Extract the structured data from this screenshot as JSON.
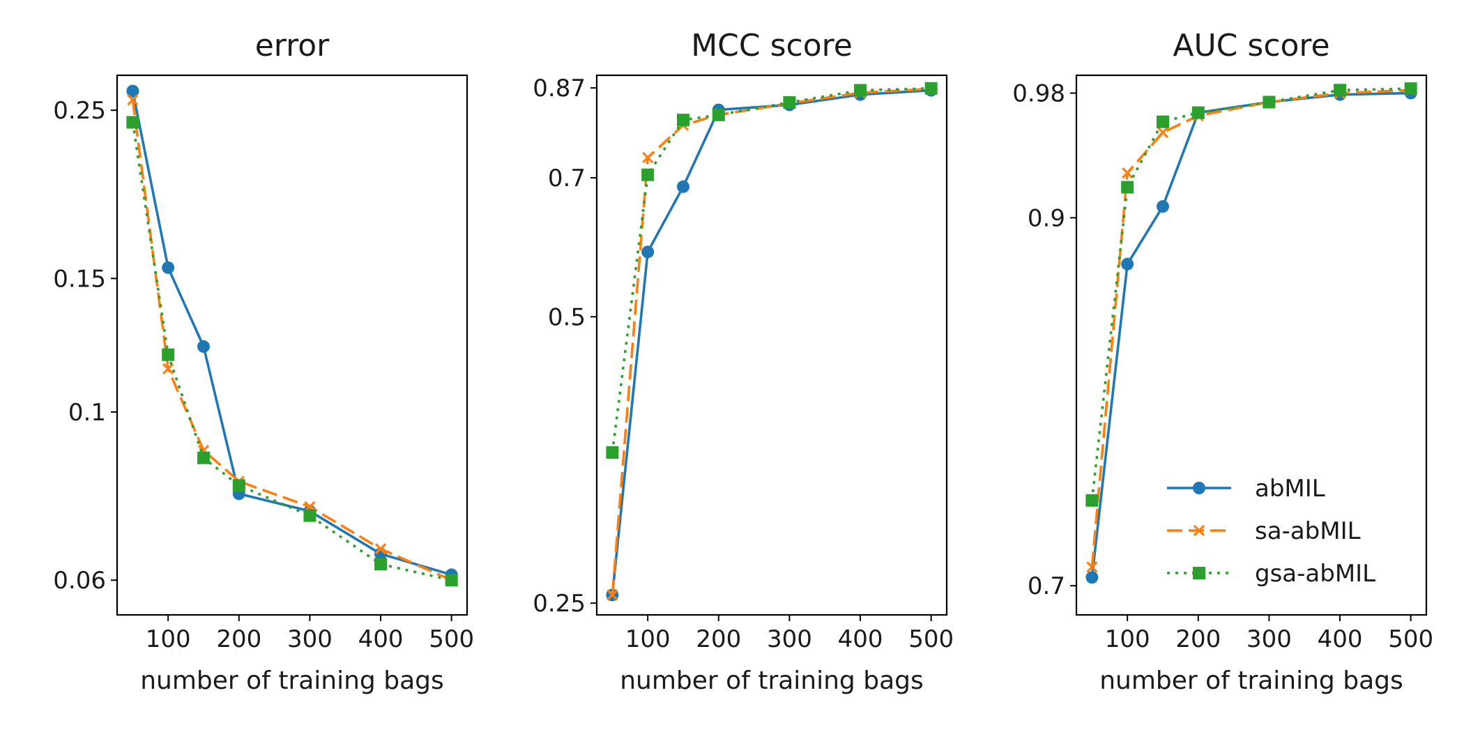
{
  "chart_data": [
    {
      "type": "line",
      "title": "error",
      "xlabel": "number of training bags",
      "ylabel": "",
      "xlim": [
        28,
        522
      ],
      "ylim": [
        0.054,
        0.278
      ],
      "xticks": [
        100,
        200,
        300,
        400,
        500
      ],
      "xtick_labels": [
        "100",
        "200",
        "300",
        "400",
        "500"
      ],
      "yticks": [
        0.06,
        0.1,
        0.15,
        0.25
      ],
      "ytick_labels": [
        "0.06",
        "0.1",
        "0.15",
        "0.25"
      ],
      "y_scale": "log",
      "grid": false,
      "x": [
        50,
        100,
        150,
        200,
        300,
        400,
        500
      ],
      "series": [
        {
          "name": "abMIL",
          "color": "#1f77b4",
          "dash": "solid",
          "marker": "circle",
          "values": [
            0.265,
            0.155,
            0.122,
            0.078,
            0.074,
            0.065,
            0.061
          ]
        },
        {
          "name": "sa-abMIL",
          "color": "#ff7f0e",
          "dash": "dashed",
          "marker": "x",
          "values": [
            0.258,
            0.114,
            0.089,
            0.081,
            0.075,
            0.066,
            0.06
          ]
        },
        {
          "name": "gsa-abMIL",
          "color": "#2ca02c",
          "dash": "dotted",
          "marker": "square",
          "values": [
            0.241,
            0.119,
            0.087,
            0.08,
            0.073,
            0.063,
            0.06
          ]
        }
      ]
    },
    {
      "type": "line",
      "title": "MCC score",
      "xlabel": "number of training bags",
      "ylabel": "",
      "xlim": [
        28,
        522
      ],
      "ylim": [
        0.243,
        0.897
      ],
      "xticks": [
        100,
        200,
        300,
        400,
        500
      ],
      "xtick_labels": [
        "100",
        "200",
        "300",
        "400",
        "500"
      ],
      "yticks": [
        0.25,
        0.5,
        0.7,
        0.87
      ],
      "ytick_labels": [
        "0.25",
        "0.5",
        "0.7",
        "0.87"
      ],
      "y_scale": "log",
      "grid": false,
      "x": [
        50,
        100,
        150,
        200,
        300,
        400,
        500
      ],
      "series": [
        {
          "name": "abMIL",
          "color": "#1f77b4",
          "dash": "solid",
          "marker": "circle",
          "values": [
            0.255,
            0.585,
            0.685,
            0.825,
            0.835,
            0.856,
            0.865
          ]
        },
        {
          "name": "sa-abMIL",
          "color": "#ff7f0e",
          "dash": "dashed",
          "marker": "x",
          "values": [
            0.255,
            0.735,
            0.795,
            0.815,
            0.838,
            0.86,
            0.868
          ]
        },
        {
          "name": "gsa-abMIL",
          "color": "#2ca02c",
          "dash": "dotted",
          "marker": "square",
          "values": [
            0.36,
            0.705,
            0.805,
            0.815,
            0.84,
            0.865,
            0.869
          ]
        }
      ]
    },
    {
      "type": "line",
      "title": "AUC score",
      "xlabel": "number of training bags",
      "ylabel": "",
      "xlim": [
        28,
        522
      ],
      "ylim": [
        0.6862,
        0.992
      ],
      "xticks": [
        100,
        200,
        300,
        400,
        500
      ],
      "xtick_labels": [
        "100",
        "200",
        "300",
        "400",
        "500"
      ],
      "yticks": [
        0.7,
        0.9,
        0.98
      ],
      "ytick_labels": [
        "0.7",
        "0.9",
        "0.98"
      ],
      "y_scale": "log",
      "grid": false,
      "x": [
        50,
        100,
        150,
        200,
        300,
        400,
        500
      ],
      "legend": "lower-right",
      "series": [
        {
          "name": "abMIL",
          "color": "#1f77b4",
          "dash": "solid",
          "marker": "circle",
          "values": [
            0.704,
            0.872,
            0.907,
            0.967,
            0.974,
            0.979,
            0.98
          ]
        },
        {
          "name": "sa-abMIL",
          "color": "#ff7f0e",
          "dash": "dashed",
          "marker": "x",
          "values": [
            0.709,
            0.928,
            0.954,
            0.965,
            0.974,
            0.98,
            0.982
          ]
        },
        {
          "name": "gsa-abMIL",
          "color": "#2ca02c",
          "dash": "dotted",
          "marker": "square",
          "values": [
            0.742,
            0.919,
            0.961,
            0.967,
            0.974,
            0.982,
            0.983
          ]
        }
      ]
    }
  ]
}
